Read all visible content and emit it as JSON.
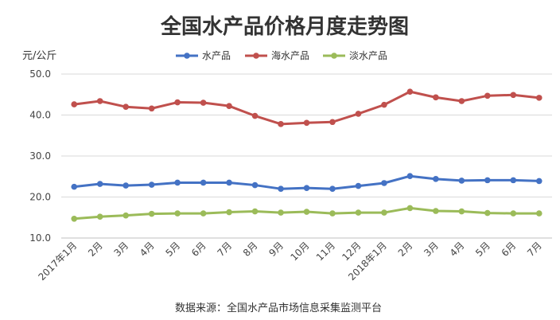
{
  "chart_data": {
    "type": "line",
    "title": "全国水产品价格月度走势图",
    "unit_label": "元/公斤",
    "source": "数据来源：全国水产品市场信息采集监测平台",
    "categories": [
      "2017年1月",
      "2月",
      "3月",
      "4月",
      "5月",
      "6月",
      "7月",
      "8月",
      "9月",
      "10月",
      "11月",
      "12月",
      "2018年1月",
      "2月",
      "3月",
      "4月",
      "5月",
      "6月",
      "7月"
    ],
    "y_ticks": [
      "10.0",
      "20.0",
      "30.0",
      "40.0",
      "50.0"
    ],
    "ylim": [
      10,
      50
    ],
    "grid": true,
    "legend_position": "top",
    "series": [
      {
        "name": "水产品",
        "color": "#4472c4",
        "values": [
          22.5,
          23.2,
          22.8,
          23.0,
          23.5,
          23.5,
          23.5,
          22.9,
          22.0,
          22.2,
          22.0,
          22.7,
          23.4,
          25.1,
          24.4,
          24.0,
          24.1,
          24.1,
          23.9
        ]
      },
      {
        "name": "海水产品",
        "color": "#c0504d",
        "values": [
          42.6,
          43.4,
          42.0,
          41.6,
          43.1,
          43.0,
          42.2,
          39.8,
          37.8,
          38.1,
          38.3,
          40.3,
          42.5,
          45.7,
          44.3,
          43.4,
          44.7,
          44.9,
          44.2
        ]
      },
      {
        "name": "淡水产品",
        "color": "#9bbb59",
        "values": [
          14.7,
          15.2,
          15.5,
          15.9,
          16.0,
          16.0,
          16.3,
          16.5,
          16.2,
          16.4,
          16.0,
          16.2,
          16.2,
          17.3,
          16.6,
          16.5,
          16.1,
          16.0,
          16.0
        ]
      }
    ]
  }
}
